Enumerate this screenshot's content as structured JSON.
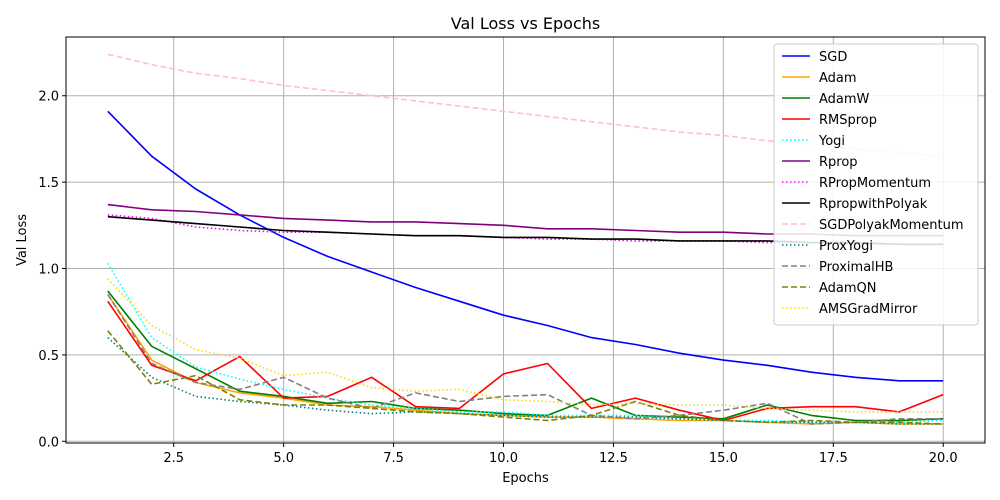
{
  "chart_data": {
    "type": "line",
    "title": "Val Loss vs Epochs",
    "xlabel": "Epochs",
    "ylabel": "Val Loss",
    "xlim": [
      0.05,
      20.95
    ],
    "ylim": [
      -0.01,
      2.34
    ],
    "xticks": [
      2.5,
      5.0,
      7.5,
      10.0,
      12.5,
      15.0,
      17.5,
      20.0
    ],
    "xtick_labels": [
      "2.5",
      "5.0",
      "7.5",
      "10.0",
      "12.5",
      "15.0",
      "17.5",
      "20.0"
    ],
    "yticks": [
      0.0,
      0.5,
      1.0,
      1.5,
      2.0
    ],
    "ytick_labels": [
      "0.0",
      "0.5",
      "1.0",
      "1.5",
      "2.0"
    ],
    "grid": true,
    "legend_position": "top-right",
    "x": [
      1,
      2,
      3,
      4,
      5,
      6,
      7,
      8,
      9,
      10,
      11,
      12,
      13,
      14,
      15,
      16,
      17,
      18,
      19,
      20
    ],
    "series": [
      {
        "name": "SGD",
        "color": "#0000ff",
        "dash": "solid",
        "values": [
          1.91,
          1.65,
          1.46,
          1.31,
          1.18,
          1.07,
          0.98,
          0.89,
          0.81,
          0.73,
          0.67,
          0.6,
          0.56,
          0.51,
          0.47,
          0.44,
          0.4,
          0.37,
          0.35,
          0.35
        ]
      },
      {
        "name": "Adam",
        "color": "#ffa500",
        "dash": "solid",
        "values": [
          0.85,
          0.47,
          0.34,
          0.28,
          0.25,
          0.21,
          0.2,
          0.18,
          0.16,
          0.15,
          0.14,
          0.14,
          0.13,
          0.12,
          0.12,
          0.11,
          0.1,
          0.11,
          0.1,
          0.1
        ]
      },
      {
        "name": "AdamW",
        "color": "#008000",
        "dash": "solid",
        "values": [
          0.87,
          0.55,
          0.42,
          0.29,
          0.26,
          0.22,
          0.23,
          0.19,
          0.18,
          0.16,
          0.15,
          0.25,
          0.15,
          0.14,
          0.13,
          0.21,
          0.15,
          0.12,
          0.12,
          0.13
        ]
      },
      {
        "name": "RMSprop",
        "color": "#ff0000",
        "dash": "solid",
        "values": [
          0.81,
          0.44,
          0.35,
          0.49,
          0.25,
          0.26,
          0.37,
          0.2,
          0.19,
          0.39,
          0.45,
          0.19,
          0.25,
          0.18,
          0.12,
          0.19,
          0.2,
          0.2,
          0.17,
          0.27
        ]
      },
      {
        "name": "Yogi",
        "color": "#00ffff",
        "dash": "dotted",
        "values": [
          1.03,
          0.6,
          0.43,
          0.36,
          0.3,
          0.25,
          0.21,
          0.19,
          0.17,
          0.17,
          0.15,
          0.15,
          0.15,
          0.13,
          0.12,
          0.12,
          0.11,
          0.11,
          0.11,
          0.12
        ]
      },
      {
        "name": "Rprop",
        "color": "#800080",
        "dash": "solid",
        "values": [
          1.37,
          1.34,
          1.33,
          1.31,
          1.29,
          1.28,
          1.27,
          1.27,
          1.26,
          1.25,
          1.23,
          1.23,
          1.22,
          1.21,
          1.21,
          1.2,
          1.2,
          1.19,
          1.19,
          1.19
        ]
      },
      {
        "name": "RPropMomentum",
        "color": "#ff00ff",
        "dash": "dotted",
        "values": [
          1.31,
          1.29,
          1.24,
          1.22,
          1.21,
          1.21,
          1.2,
          1.19,
          1.19,
          1.18,
          1.17,
          1.17,
          1.16,
          1.16,
          1.16,
          1.15,
          1.15,
          1.14,
          1.14,
          1.14
        ]
      },
      {
        "name": "RpropwithPolyak",
        "color": "#000000",
        "dash": "solid",
        "values": [
          1.3,
          1.28,
          1.26,
          1.24,
          1.22,
          1.21,
          1.2,
          1.19,
          1.19,
          1.18,
          1.18,
          1.17,
          1.17,
          1.16,
          1.16,
          1.16,
          1.15,
          1.15,
          1.14,
          1.14
        ]
      },
      {
        "name": "SGDPolyakMomentum",
        "color": "#ffc0cb",
        "dash": "dashed",
        "values": [
          2.24,
          2.18,
          2.13,
          2.1,
          2.06,
          2.03,
          2.0,
          1.97,
          1.94,
          1.91,
          1.88,
          1.85,
          1.82,
          1.79,
          1.77,
          1.74,
          1.72,
          1.69,
          1.67,
          1.65
        ]
      },
      {
        "name": "ProxYogi",
        "color": "#008080",
        "dash": "dotted",
        "values": [
          0.6,
          0.37,
          0.26,
          0.23,
          0.21,
          0.18,
          0.16,
          0.17,
          0.16,
          0.15,
          0.14,
          0.14,
          0.14,
          0.13,
          0.12,
          0.11,
          0.11,
          0.11,
          0.1,
          0.1
        ]
      },
      {
        "name": "ProximalHB",
        "color": "#808080",
        "dash": "dashed",
        "values": [
          0.85,
          0.45,
          0.34,
          0.3,
          0.37,
          0.25,
          0.19,
          0.28,
          0.23,
          0.26,
          0.27,
          0.15,
          0.13,
          0.15,
          0.18,
          0.22,
          0.1,
          0.11,
          0.13,
          0.13
        ]
      },
      {
        "name": "AdamQN",
        "color": "#808000",
        "dash": "dashed",
        "values": [
          0.64,
          0.33,
          0.38,
          0.24,
          0.21,
          0.21,
          0.19,
          0.17,
          0.16,
          0.14,
          0.12,
          0.15,
          0.23,
          0.15,
          0.12,
          0.11,
          0.12,
          0.11,
          0.11,
          0.1
        ]
      },
      {
        "name": "AMSGradMirror",
        "color": "#ffd700",
        "dash": "dotted",
        "values": [
          0.94,
          0.67,
          0.53,
          0.48,
          0.38,
          0.4,
          0.31,
          0.29,
          0.3,
          0.24,
          0.23,
          0.21,
          0.22,
          0.21,
          0.21,
          0.19,
          0.18,
          0.17,
          0.17,
          0.17
        ]
      }
    ]
  }
}
